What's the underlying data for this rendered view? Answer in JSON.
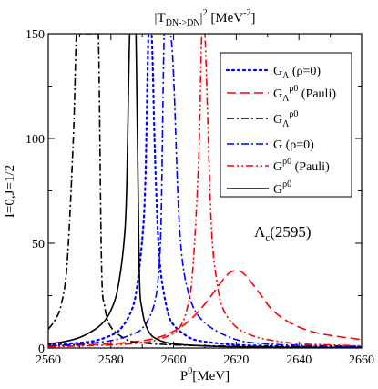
{
  "chart_data": {
    "type": "line",
    "title_parts": {
      "bar_open": "|",
      "main": "T",
      "sub": "DN->DN",
      "bar_close": "|",
      "sup": "2",
      "unit_open": " [MeV",
      "unit_sup": "-2",
      "unit_close": "]"
    },
    "xlabel_parts": {
      "main": "P",
      "sup": "0",
      "rest": "[MeV]"
    },
    "ylabel": "I=0,J=1/2",
    "annotation": {
      "main": "Λ",
      "sub": "c",
      "rest": "(2595)"
    },
    "xlim": [
      2560,
      2660
    ],
    "ylim": [
      0,
      150
    ],
    "xticks": [
      2560,
      2580,
      2600,
      2620,
      2640,
      2660
    ],
    "yticks": [
      0,
      50,
      100,
      150
    ],
    "grid": false,
    "legend_position": "top-right",
    "series": [
      {
        "legend": {
          "main": "G",
          "sub": "Λ",
          "rest": " (ρ=0)"
        },
        "color": "#0000ff",
        "dash": "dot",
        "x": [
          2560,
          2570,
          2575,
          2580,
          2583,
          2586,
          2588,
          2590,
          2591,
          2592,
          2593,
          2594,
          2595,
          2596,
          2598,
          2600,
          2605,
          2610,
          2620,
          2630,
          2640,
          2660
        ],
        "y": [
          1.5,
          2.5,
          3.5,
          6,
          9,
          16,
          26,
          52,
          80,
          150,
          150,
          95,
          55,
          35,
          18,
          11,
          5,
          3,
          1.5,
          1,
          0.7,
          0.4
        ]
      },
      {
        "legend": {
          "main": "G",
          "sub": "Λ",
          "sup": "ρ0",
          "rest": " (Pauli)"
        },
        "color": "#ff0000",
        "dash": "longdash",
        "x": [
          2560,
          2580,
          2590,
          2595,
          2600,
          2605,
          2610,
          2613,
          2616,
          2618,
          2620,
          2622,
          2625,
          2628,
          2631,
          2635,
          2640,
          2645,
          2650,
          2655,
          2660
        ],
        "y": [
          1,
          2,
          3.5,
          5,
          8,
          13,
          21,
          27,
          33,
          36,
          37,
          36,
          31,
          25,
          19,
          14,
          10,
          7.5,
          6,
          5,
          4
        ]
      },
      {
        "legend": {
          "main": "G",
          "sub": "Λ",
          "sup": "ρ0",
          "rest": ""
        },
        "color": "#000000",
        "dash": "dashdot",
        "x": [
          2560,
          2562,
          2564,
          2566,
          2568,
          2569,
          2570,
          2571,
          2572,
          2573,
          2574,
          2575,
          2576,
          2577,
          2578,
          2580,
          2585,
          2590,
          2600,
          2620,
          2640,
          2660
        ],
        "y": [
          9,
          13,
          20,
          40,
          100,
          150,
          150,
          150,
          150,
          150,
          150,
          150,
          150,
          40,
          20,
          10,
          4,
          2.5,
          1.5,
          0.8,
          0.5,
          0.3
        ]
      },
      {
        "legend": {
          "main": "G (ρ=0)",
          "sub": "",
          "rest": ""
        },
        "color": "#0000ff",
        "dash": "dashdot",
        "x": [
          2560,
          2570,
          2575,
          2580,
          2585,
          2589,
          2590,
          2591,
          2592,
          2593,
          2594,
          2595,
          2596,
          2597,
          2598,
          2599,
          2600,
          2602,
          2605,
          2610,
          2620,
          2630,
          2640,
          2660
        ],
        "y": [
          1,
          1.8,
          2.5,
          3.5,
          5.5,
          8,
          9.5,
          11,
          14,
          17,
          22,
          32,
          60,
          150,
          150,
          150,
          130,
          55,
          25,
          12,
          4,
          2,
          1.3,
          0.8
        ]
      },
      {
        "legend": {
          "main": "G",
          "sup": "ρ0",
          "rest": " (Pauli)"
        },
        "color": "#ff0000",
        "dash": "dashdotdot",
        "x": [
          2560,
          2580,
          2590,
          2595,
          2600,
          2602,
          2604,
          2606,
          2608,
          2609,
          2610,
          2612,
          2614,
          2616,
          2620,
          2625,
          2630,
          2640,
          2650,
          2660
        ],
        "y": [
          0.5,
          1.5,
          2.5,
          4,
          7,
          10,
          17,
          35,
          90,
          150,
          150,
          60,
          30,
          18,
          10,
          6,
          4,
          2,
          1.5,
          1
        ]
      },
      {
        "legend": {
          "main": "G",
          "sup": "ρ0",
          "rest": ""
        },
        "color": "#000000",
        "dash": "solid",
        "x": [
          2560,
          2565,
          2570,
          2575,
          2578,
          2580,
          2582,
          2584,
          2585,
          2586,
          2587,
          2588,
          2589,
          2590,
          2592,
          2595,
          2600,
          2610,
          2620,
          2640,
          2660
        ],
        "y": [
          2,
          3,
          5,
          9,
          13,
          18,
          27,
          48,
          75,
          150,
          150,
          150,
          40,
          18,
          8,
          4,
          2,
          1,
          0.6,
          0.3,
          0.2
        ]
      }
    ]
  }
}
